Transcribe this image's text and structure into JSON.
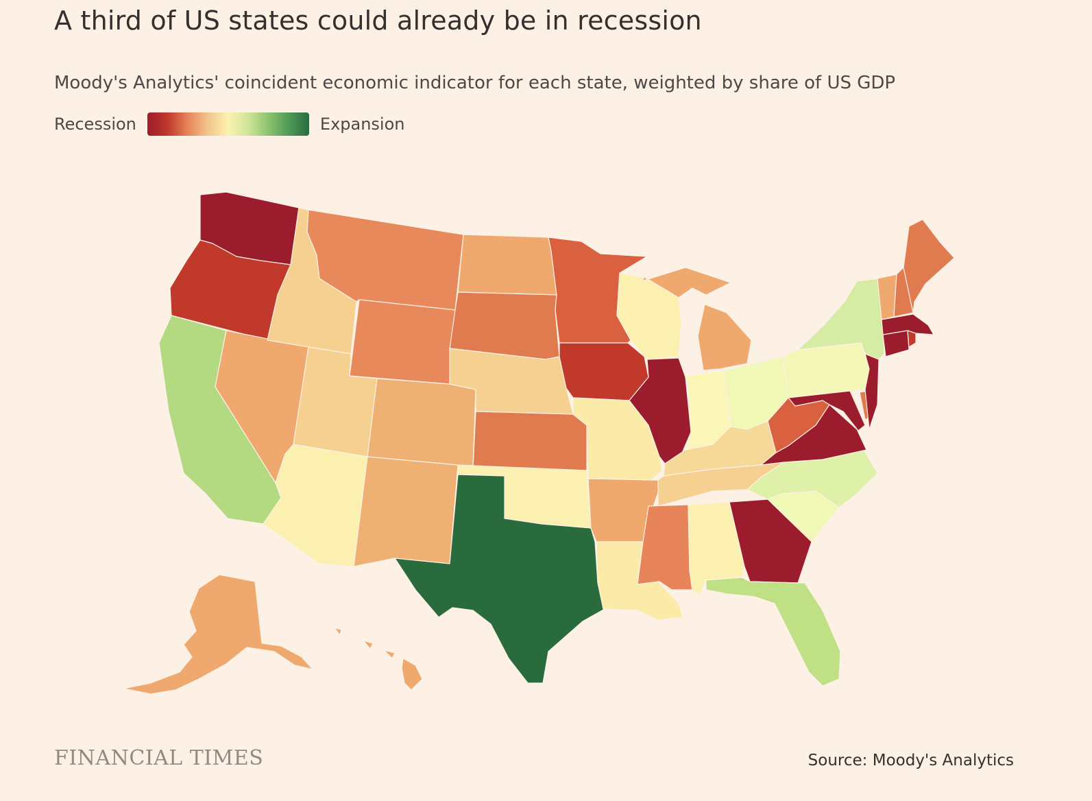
{
  "title": "A third of US states could already be in recession",
  "subtitle": "Moody's Analytics' coincident economic indicator for each state, weighted by share of US GDP",
  "legend": {
    "low_label": "Recession",
    "high_label": "Expansion",
    "stops": [
      "#9b1c2c",
      "#c0392b",
      "#e8845a",
      "#f3c58c",
      "#fbf2b0",
      "#cfe49a",
      "#8cc26f",
      "#4e9a58",
      "#2a6b3e"
    ]
  },
  "footer": {
    "brand": "FINANCIAL TIMES",
    "source": "Source: Moody's Analytics"
  },
  "colors": {
    "background": "#fdf1e6",
    "deep_red": "#9b1c2c",
    "red": "#c0392b",
    "orange_red": "#d9613f",
    "orange": "#e8895b",
    "light_orange": "#efa96e",
    "peach": "#f6d090",
    "pale_yellow": "#fbf0b0",
    "yellow_green": "#eef7b4",
    "light_green": "#cfe8a0",
    "green": "#b3da80",
    "dark_green": "#2a6b3e"
  },
  "states": [
    {
      "id": "WA",
      "color": "#9b1c2c"
    },
    {
      "id": "OR",
      "color": "#c0392b"
    },
    {
      "id": "CA",
      "color": "#b3da80"
    },
    {
      "id": "NV",
      "color": "#efa96e"
    },
    {
      "id": "ID",
      "color": "#f6d090"
    },
    {
      "id": "MT",
      "color": "#e8895b"
    },
    {
      "id": "WY",
      "color": "#e8895b"
    },
    {
      "id": "UT",
      "color": "#f6d090"
    },
    {
      "id": "AZ",
      "color": "#fbf0b0"
    },
    {
      "id": "CO",
      "color": "#efb074"
    },
    {
      "id": "NM",
      "color": "#efb074"
    },
    {
      "id": "ND",
      "color": "#efa96e"
    },
    {
      "id": "SD",
      "color": "#e07a4f"
    },
    {
      "id": "NE",
      "color": "#f6d090"
    },
    {
      "id": "KS",
      "color": "#e07a4f"
    },
    {
      "id": "OK",
      "color": "#fbf0b0"
    },
    {
      "id": "TX",
      "color": "#2a6b3e"
    },
    {
      "id": "MN",
      "color": "#d9613f"
    },
    {
      "id": "IA",
      "color": "#c0392b"
    },
    {
      "id": "MO",
      "color": "#fbeaa8"
    },
    {
      "id": "AR",
      "color": "#efa96e"
    },
    {
      "id": "LA",
      "color": "#fbeaa8"
    },
    {
      "id": "WI",
      "color": "#fbf0b0"
    },
    {
      "id": "IL",
      "color": "#9b1c2c"
    },
    {
      "id": "MI",
      "color": "#efa96e"
    },
    {
      "id": "IN",
      "color": "#fbf5b8"
    },
    {
      "id": "OH",
      "color": "#f1f7b4"
    },
    {
      "id": "KY",
      "color": "#f6d898"
    },
    {
      "id": "TN",
      "color": "#f6d090"
    },
    {
      "id": "MS",
      "color": "#e8845a"
    },
    {
      "id": "AL",
      "color": "#fbf0b0"
    },
    {
      "id": "GA",
      "color": "#9b1c2c"
    },
    {
      "id": "FL",
      "color": "#bfe084"
    },
    {
      "id": "SC",
      "color": "#f1f7b4"
    },
    {
      "id": "NC",
      "color": "#dff0a8"
    },
    {
      "id": "VA",
      "color": "#9b1c2c"
    },
    {
      "id": "WV",
      "color": "#d9613f"
    },
    {
      "id": "PA",
      "color": "#f3f6b4"
    },
    {
      "id": "NY",
      "color": "#d6eca4"
    },
    {
      "id": "NJ",
      "color": "#9b1c2c"
    },
    {
      "id": "DE",
      "color": "#e07a4f"
    },
    {
      "id": "MD",
      "color": "#9b1c2c"
    },
    {
      "id": "CT",
      "color": "#9b1c2c"
    },
    {
      "id": "RI",
      "color": "#c0392b"
    },
    {
      "id": "MA",
      "color": "#9b1c2c"
    },
    {
      "id": "VT",
      "color": "#efa96e"
    },
    {
      "id": "NH",
      "color": "#e07a4f"
    },
    {
      "id": "ME",
      "color": "#e07a4f"
    },
    {
      "id": "AK",
      "color": "#efa96e"
    },
    {
      "id": "HI",
      "color": "#efa96e"
    }
  ]
}
